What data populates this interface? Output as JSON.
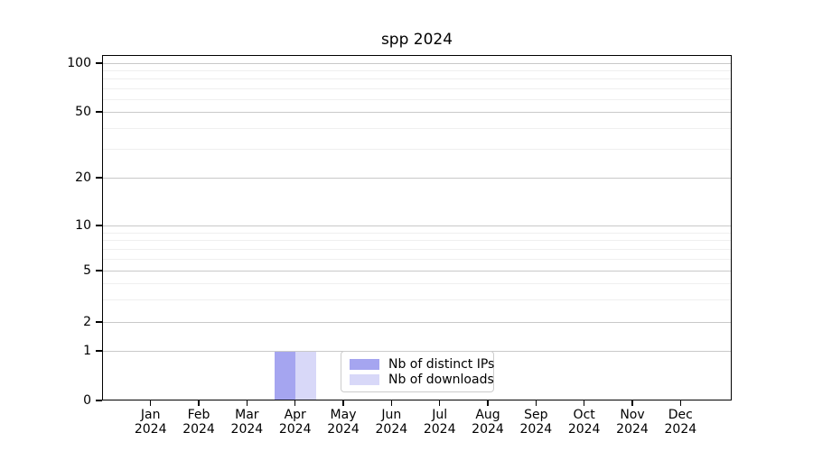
{
  "chart_data": {
    "type": "bar",
    "title": "spp 2024",
    "categories": [
      "Jan 2024",
      "Feb 2024",
      "Mar 2024",
      "Apr 2024",
      "May 2024",
      "Jun 2024",
      "Jul 2024",
      "Aug 2024",
      "Sep 2024",
      "Oct 2024",
      "Nov 2024",
      "Dec 2024"
    ],
    "series": [
      {
        "name": "Nb of distinct IPs",
        "color": "#a5a5f0",
        "values": [
          0,
          0,
          0,
          1,
          0,
          0,
          0,
          0,
          0,
          0,
          0,
          0
        ]
      },
      {
        "name": "Nb of downloads",
        "color": "#d8d8f8",
        "values": [
          0,
          0,
          0,
          1,
          0,
          0,
          0,
          0,
          0,
          0,
          0,
          0
        ]
      }
    ],
    "yscale": "symlog",
    "yticks": [
      0,
      1,
      2,
      5,
      10,
      20,
      50,
      100
    ],
    "yminorticks": [
      3,
      4,
      6,
      7,
      8,
      9,
      30,
      40,
      60,
      70,
      80,
      90
    ],
    "ylim": [
      0,
      110
    ],
    "xlabel": "",
    "ylabel": "",
    "grid": "horizontal",
    "legend_position": "inside-bottom-center",
    "frame_color": "#000000",
    "major_grid_color": "#c9c9c9",
    "minor_grid_color": "#efefef"
  }
}
